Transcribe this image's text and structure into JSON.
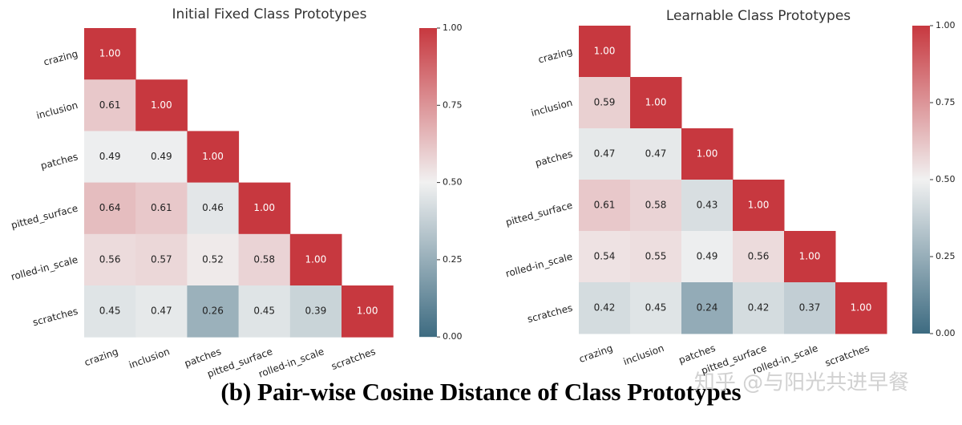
{
  "chart_data": [
    {
      "type": "heatmap",
      "title": "Initial Fixed Class Prototypes",
      "categories": [
        "crazing",
        "inclusion",
        "patches",
        "pitted_surface",
        "rolled-in_scale",
        "scratches"
      ],
      "values": [
        [
          1.0,
          null,
          null,
          null,
          null,
          null
        ],
        [
          0.61,
          1.0,
          null,
          null,
          null,
          null
        ],
        [
          0.49,
          0.49,
          1.0,
          null,
          null,
          null
        ],
        [
          0.64,
          0.61,
          0.46,
          1.0,
          null,
          null
        ],
        [
          0.56,
          0.57,
          0.52,
          0.58,
          1.0,
          null
        ],
        [
          0.45,
          0.47,
          0.26,
          0.45,
          0.39,
          1.0
        ]
      ],
      "value_labels": [
        [
          "1.00",
          null,
          null,
          null,
          null,
          null
        ],
        [
          "0.61",
          "1.00",
          null,
          null,
          null,
          null
        ],
        [
          "0.49",
          "0.49",
          "1.00",
          null,
          null,
          null
        ],
        [
          "0.64",
          "0.61",
          "0.46",
          "1.00",
          null,
          null
        ],
        [
          "0.56",
          "0.57",
          "0.52",
          "0.58",
          "1.00",
          null
        ],
        [
          "0.45",
          "0.47",
          "0.26",
          "0.45",
          "0.39",
          "1.00"
        ]
      ],
      "colors": [
        "#3d6b81",
        "#f1f1f1",
        "#c7383f"
      ],
      "clim": [
        0,
        1
      ],
      "cticks": [
        {
          "value": 0,
          "label": "0.00"
        },
        {
          "value": 0.25,
          "label": "0.25"
        },
        {
          "value": 0.5,
          "label": "0.50"
        },
        {
          "value": 0.75,
          "label": "0.75"
        },
        {
          "value": 1,
          "label": "1.00"
        }
      ]
    },
    {
      "type": "heatmap",
      "title": "Learnable Class Prototypes",
      "categories": [
        "crazing",
        "inclusion",
        "patches",
        "pitted_surface",
        "rolled-in_scale",
        "scratches"
      ],
      "values": [
        [
          1.0,
          null,
          null,
          null,
          null,
          null
        ],
        [
          0.59,
          1.0,
          null,
          null,
          null,
          null
        ],
        [
          0.47,
          0.47,
          1.0,
          null,
          null,
          null
        ],
        [
          0.61,
          0.58,
          0.43,
          1.0,
          null,
          null
        ],
        [
          0.54,
          0.55,
          0.49,
          0.56,
          1.0,
          null
        ],
        [
          0.42,
          0.45,
          0.24,
          0.42,
          0.37,
          1.0
        ]
      ],
      "value_labels": [
        [
          "1.00",
          null,
          null,
          null,
          null,
          null
        ],
        [
          "0.59",
          "1.00",
          null,
          null,
          null,
          null
        ],
        [
          "0.47",
          "0.47",
          "1.00",
          null,
          null,
          null
        ],
        [
          "0.61",
          "0.58",
          "0.43",
          "1.00",
          null,
          null
        ],
        [
          "0.54",
          "0.55",
          "0.49",
          "0.56",
          "1.00",
          null
        ],
        [
          "0.42",
          "0.45",
          "0.24",
          "0.42",
          "0.37",
          "1.00"
        ]
      ],
      "colors": [
        "#3d6b81",
        "#f1f1f1",
        "#c7383f"
      ],
      "clim": [
        0,
        1
      ],
      "cticks": [
        {
          "value": 0,
          "label": "0.00"
        },
        {
          "value": 0.25,
          "label": "0.25"
        },
        {
          "value": 0.5,
          "label": "0.50"
        },
        {
          "value": 0.75,
          "label": "0.75"
        },
        {
          "value": 1,
          "label": "1.00"
        }
      ]
    }
  ],
  "caption": "(b) Pair-wise Cosine Distance of Class Prototypes",
  "watermark": "知乎 @与阳光共进早餐"
}
